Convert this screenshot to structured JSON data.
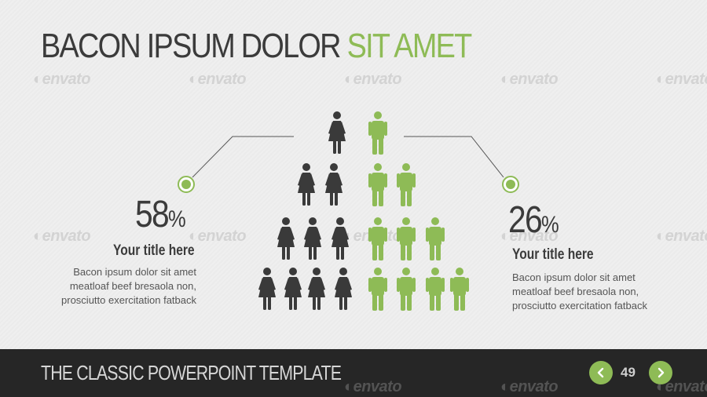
{
  "title": {
    "part1": "BACON IPSUM DOLOR",
    "part2": "SIT AMET"
  },
  "watermark": "envato",
  "colors": {
    "accent": "#8ebb56",
    "dark": "#3a3a3a",
    "footer": "#262626"
  },
  "left_stat": {
    "value": "58",
    "unit": "%",
    "subtitle": "Your title here",
    "lines": [
      "Bacon ipsum dolor sit amet",
      "meatloaf beef bresaola non,",
      "prosciutto exercitation fatback"
    ]
  },
  "right_stat": {
    "value": "26",
    "unit": "%",
    "subtitle": "Your title here",
    "lines": [
      "Bacon ipsum dolor sit amet",
      "meatloaf beef bresaola non,",
      "prosciutto exercitation fatback"
    ]
  },
  "icons": {
    "female": "female-person-icon",
    "male": "male-person-icon",
    "prev": "chevron-left-icon",
    "next": "chevron-right-icon"
  },
  "footer": {
    "title": "THE CLASSIC POWERPOINT TEMPLATE",
    "page": "49"
  }
}
